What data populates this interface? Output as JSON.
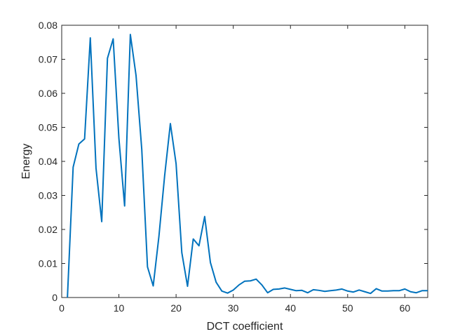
{
  "chart_data": {
    "type": "line",
    "title": "",
    "xlabel": "DCT coefficient",
    "ylabel": "Energy",
    "xlim": [
      0,
      64
    ],
    "ylim": [
      0,
      0.08
    ],
    "xticks": [
      0,
      10,
      20,
      30,
      40,
      50,
      60
    ],
    "xtick_labels": [
      "0",
      "10",
      "20",
      "30",
      "40",
      "50",
      "60"
    ],
    "yticks": [
      0,
      0.01,
      0.02,
      0.03,
      0.04,
      0.05,
      0.06,
      0.07,
      0.08
    ],
    "ytick_labels": [
      "0",
      "0.01",
      "0.02",
      "0.03",
      "0.04",
      "0.05",
      "0.06",
      "0.07",
      "0.08"
    ],
    "grid": false,
    "legend": "none",
    "series_color": "#0072BD",
    "series": [
      {
        "x": [
          1,
          2,
          3,
          4,
          5,
          6,
          7,
          8,
          9,
          10,
          11,
          12,
          13,
          14,
          15,
          16,
          17,
          18,
          19,
          20,
          21,
          22,
          23,
          24,
          25,
          26,
          27,
          28,
          29,
          30,
          31,
          32,
          33,
          34,
          35,
          36,
          37,
          38,
          39,
          40,
          41,
          42,
          43,
          44,
          45,
          46,
          47,
          48,
          49,
          50,
          51,
          52,
          53,
          54,
          55,
          56,
          57,
          58,
          59,
          60,
          61,
          62,
          63,
          64
        ],
        "values": [
          0,
          0.0383,
          0.0451,
          0.0466,
          0.0763,
          0.038,
          0.0223,
          0.0703,
          0.076,
          0.0468,
          0.0269,
          0.0773,
          0.0652,
          0.0435,
          0.009,
          0.0034,
          0.018,
          0.0358,
          0.0511,
          0.0393,
          0.0132,
          0.0033,
          0.0172,
          0.0152,
          0.0238,
          0.0103,
          0.0045,
          0.0019,
          0.0013,
          0.0022,
          0.0037,
          0.0048,
          0.0049,
          0.0054,
          0.0037,
          0.0014,
          0.0024,
          0.0025,
          0.0028,
          0.0024,
          0.002,
          0.0021,
          0.0014,
          0.0023,
          0.0021,
          0.0018,
          0.002,
          0.0022,
          0.0025,
          0.0019,
          0.0016,
          0.0022,
          0.0017,
          0.0012,
          0.0026,
          0.0019,
          0.0019,
          0.002,
          0.002,
          0.0025,
          0.0017,
          0.0014,
          0.002,
          0.002
        ]
      }
    ]
  }
}
